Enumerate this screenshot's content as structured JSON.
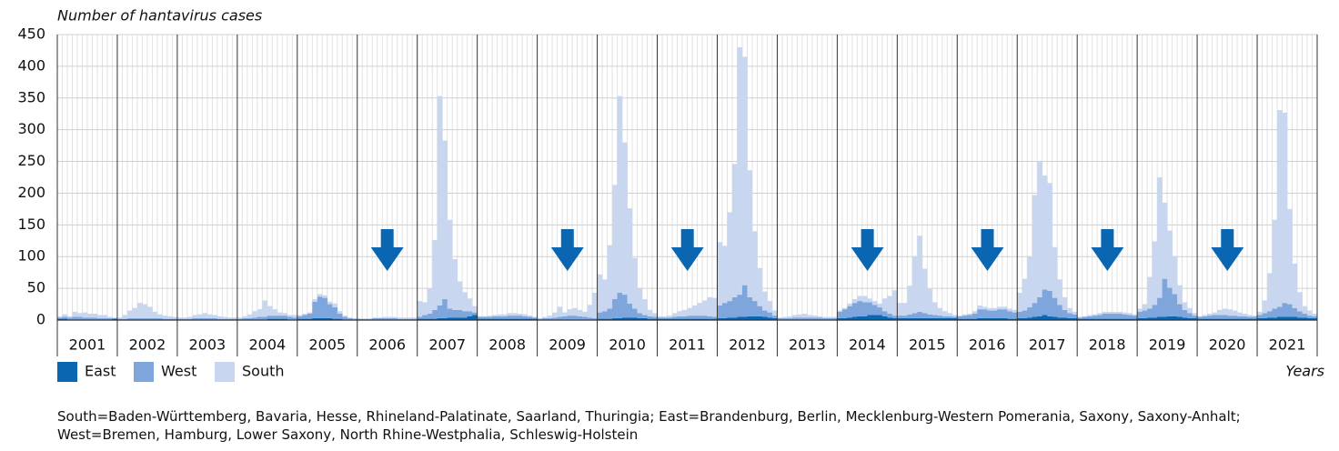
{
  "chart_data": {
    "type": "stacked-bar",
    "ylabel": "Number of hantavirus cases",
    "xlabel": "Years",
    "footnote": "South=Baden-Württemberg, Bavaria, Hesse, Rhineland-Palatinate, Saarland, Thuringia; East=Brandenburg, Berlin, Mecklenburg-Western Pomerania, Saxony, Saxony-Anhalt; West=Bremen, Hamburg, Lower Saxony, North Rhine-Westphalia, Schleswig-Holstein",
    "categories": [
      null,
      null,
      null,
      null,
      null,
      null,
      "2001",
      null,
      null,
      null,
      null,
      null,
      null,
      null,
      null,
      null,
      null,
      null,
      "2002",
      null,
      null,
      null,
      null,
      null,
      null,
      null,
      null,
      null,
      null,
      null,
      "2003",
      null,
      null,
      null,
      null,
      null,
      null,
      null,
      null,
      null,
      null,
      null,
      "2004",
      null,
      null,
      null,
      null,
      null,
      null,
      null,
      null,
      null,
      null,
      null,
      "2005",
      null,
      null,
      null,
      null,
      null,
      null,
      null,
      null,
      null,
      null,
      null,
      "2006",
      null,
      null,
      null,
      null,
      null,
      null,
      null,
      null,
      null,
      null,
      null,
      "2007",
      null,
      null,
      null,
      null,
      null,
      null,
      null,
      null,
      null,
      null,
      null,
      "2008",
      null,
      null,
      null,
      null,
      null,
      null,
      null,
      null,
      null,
      null,
      null,
      "2009",
      null,
      null,
      null,
      null,
      null,
      null,
      null,
      null,
      null,
      null,
      null,
      "2010",
      null,
      null,
      null,
      null,
      null,
      null,
      null,
      null,
      null,
      null,
      null,
      "2011",
      null,
      null,
      null,
      null,
      null,
      null,
      null,
      null,
      null,
      null,
      null,
      "2012",
      null,
      null,
      null,
      null,
      null,
      null,
      null,
      null,
      null,
      null,
      null,
      "2013",
      null,
      null,
      null,
      null,
      null,
      null,
      null,
      null,
      null,
      null,
      null,
      "2014",
      null,
      null,
      null,
      null,
      null,
      null,
      null,
      null,
      null,
      null,
      null,
      "2015",
      null,
      null,
      null,
      null,
      null,
      null,
      null,
      null,
      null,
      null,
      null,
      "2016",
      null,
      null,
      null,
      null,
      null,
      null,
      null,
      null,
      null,
      null,
      null,
      "2017",
      null,
      null,
      null,
      null,
      null,
      null,
      null,
      null,
      null,
      null,
      null,
      "2018",
      null,
      null,
      null,
      null,
      null,
      null,
      null,
      null,
      null,
      null,
      null,
      "2019",
      null,
      null,
      null,
      null,
      null,
      null,
      null,
      null,
      null,
      null,
      null,
      "2020",
      null,
      null,
      null,
      null,
      null,
      null,
      null,
      null,
      null,
      null,
      null,
      "2021",
      null,
      null,
      null,
      null,
      null
    ],
    "series": [
      {
        "name": "East",
        "color": "#0a66b0",
        "values": [
          2,
          2,
          1,
          1,
          1,
          1,
          1,
          1,
          1,
          1,
          1,
          2,
          1,
          1,
          1,
          1,
          1,
          1,
          1,
          1,
          1,
          1,
          1,
          1,
          1,
          1,
          1,
          1,
          1,
          1,
          1,
          1,
          1,
          1,
          1,
          1,
          1,
          1,
          1,
          1,
          1,
          1,
          2,
          2,
          2,
          2,
          1,
          1,
          2,
          2,
          2,
          3,
          3,
          3,
          3,
          2,
          2,
          1,
          1,
          1,
          1,
          1,
          1,
          1,
          1,
          1,
          1,
          1,
          1,
          1,
          1,
          1,
          2,
          2,
          2,
          2,
          3,
          3,
          4,
          4,
          4,
          4,
          6,
          8,
          2,
          2,
          2,
          2,
          2,
          2,
          2,
          2,
          2,
          2,
          2,
          2,
          1,
          1,
          1,
          1,
          1,
          1,
          1,
          1,
          1,
          1,
          1,
          1,
          2,
          2,
          2,
          3,
          3,
          4,
          4,
          4,
          3,
          3,
          2,
          2,
          2,
          2,
          2,
          2,
          2,
          2,
          2,
          2,
          2,
          2,
          2,
          2,
          3,
          3,
          4,
          4,
          5,
          5,
          6,
          6,
          6,
          5,
          4,
          3,
          1,
          1,
          1,
          1,
          1,
          1,
          1,
          1,
          1,
          1,
          1,
          1,
          3,
          3,
          4,
          5,
          6,
          6,
          8,
          8,
          8,
          6,
          4,
          3,
          3,
          3,
          3,
          3,
          3,
          3,
          3,
          3,
          3,
          3,
          3,
          3,
          2,
          2,
          2,
          2,
          3,
          3,
          3,
          3,
          3,
          3,
          2,
          2,
          3,
          3,
          4,
          5,
          6,
          8,
          6,
          5,
          4,
          4,
          3,
          3,
          2,
          2,
          2,
          2,
          2,
          2,
          2,
          2,
          2,
          2,
          2,
          2,
          3,
          3,
          4,
          4,
          5,
          5,
          6,
          6,
          5,
          4,
          3,
          3,
          2,
          2,
          2,
          2,
          2,
          2,
          2,
          2,
          2,
          2,
          2,
          2,
          3,
          3,
          4,
          4,
          5,
          5,
          5,
          5,
          4,
          4,
          3,
          3
        ]
      },
      {
        "name": "West",
        "color": "#7ea6dc",
        "values": [
          2,
          3,
          3,
          4,
          4,
          3,
          3,
          3,
          2,
          2,
          2,
          1,
          1,
          1,
          2,
          2,
          2,
          2,
          2,
          2,
          2,
          1,
          1,
          1,
          1,
          1,
          1,
          2,
          2,
          2,
          2,
          2,
          1,
          1,
          1,
          1,
          1,
          2,
          2,
          3,
          4,
          4,
          5,
          5,
          5,
          5,
          4,
          3,
          4,
          6,
          8,
          26,
          34,
          32,
          22,
          18,
          8,
          4,
          2,
          1,
          1,
          1,
          1,
          2,
          2,
          2,
          2,
          2,
          1,
          1,
          1,
          1,
          3,
          6,
          8,
          14,
          20,
          30,
          14,
          12,
          12,
          10,
          8,
          4,
          3,
          3,
          3,
          4,
          4,
          4,
          5,
          5,
          5,
          4,
          3,
          2,
          1,
          2,
          2,
          3,
          4,
          5,
          6,
          6,
          5,
          4,
          3,
          2,
          10,
          12,
          16,
          30,
          40,
          36,
          22,
          14,
          8,
          5,
          4,
          3,
          2,
          2,
          2,
          3,
          4,
          4,
          5,
          5,
          5,
          5,
          4,
          3,
          20,
          24,
          26,
          32,
          35,
          50,
          30,
          24,
          16,
          10,
          8,
          4,
          2,
          2,
          2,
          3,
          3,
          3,
          3,
          3,
          3,
          2,
          2,
          2,
          10,
          14,
          18,
          22,
          24,
          22,
          20,
          16,
          12,
          8,
          6,
          4,
          4,
          4,
          6,
          8,
          10,
          8,
          6,
          5,
          4,
          3,
          3,
          2,
          4,
          5,
          6,
          8,
          14,
          14,
          12,
          12,
          14,
          14,
          12,
          10,
          10,
          12,
          16,
          22,
          30,
          40,
          40,
          30,
          20,
          12,
          8,
          6,
          2,
          3,
          4,
          5,
          6,
          8,
          8,
          8,
          8,
          7,
          6,
          5,
          10,
          12,
          14,
          20,
          30,
          60,
          45,
          35,
          20,
          12,
          8,
          4,
          3,
          4,
          5,
          6,
          6,
          6,
          5,
          5,
          4,
          4,
          3,
          3,
          5,
          8,
          10,
          14,
          16,
          22,
          20,
          14,
          10,
          6,
          4,
          3
        ]
      },
      {
        "name": "South",
        "color": "#c8d7ef",
        "values": [
          2,
          4,
          2,
          8,
          6,
          8,
          6,
          6,
          5,
          5,
          2,
          1,
          2,
          6,
          12,
          16,
          24,
          22,
          18,
          10,
          6,
          5,
          4,
          3,
          2,
          2,
          3,
          5,
          6,
          8,
          6,
          5,
          4,
          3,
          2,
          2,
          2,
          3,
          6,
          10,
          12,
          26,
          15,
          10,
          5,
          4,
          3,
          4,
          2,
          2,
          2,
          4,
          4,
          4,
          4,
          6,
          4,
          2,
          1,
          1,
          0,
          0,
          0,
          1,
          1,
          2,
          2,
          2,
          2,
          2,
          2,
          2,
          25,
          20,
          40,
          110,
          330,
          250,
          140,
          80,
          45,
          30,
          20,
          10,
          1,
          1,
          2,
          2,
          3,
          3,
          4,
          4,
          3,
          3,
          2,
          1,
          1,
          2,
          4,
          8,
          16,
          6,
          10,
          12,
          10,
          8,
          20,
          40,
          60,
          50,
          100,
          180,
          310,
          240,
          150,
          80,
          40,
          25,
          10,
          6,
          2,
          2,
          3,
          6,
          8,
          10,
          12,
          16,
          20,
          24,
          30,
          30,
          100,
          90,
          140,
          210,
          390,
          360,
          200,
          110,
          60,
          30,
          18,
          8,
          1,
          2,
          3,
          4,
          5,
          6,
          4,
          3,
          2,
          2,
          2,
          2,
          2,
          2,
          4,
          6,
          8,
          10,
          6,
          6,
          6,
          20,
          28,
          40,
          20,
          20,
          45,
          90,
          120,
          70,
          40,
          20,
          12,
          8,
          5,
          3,
          1,
          2,
          2,
          4,
          6,
          4,
          4,
          4,
          4,
          4,
          4,
          4,
          30,
          50,
          80,
          170,
          215,
          180,
          170,
          80,
          40,
          20,
          8,
          4,
          1,
          1,
          2,
          2,
          3,
          3,
          3,
          3,
          3,
          3,
          3,
          2,
          5,
          10,
          50,
          100,
          190,
          120,
          90,
          60,
          30,
          12,
          8,
          4,
          1,
          2,
          3,
          4,
          8,
          10,
          10,
          8,
          6,
          4,
          3,
          2,
          5,
          20,
          60,
          140,
          310,
          300,
          150,
          70,
          30,
          12,
          8,
          4
        ]
      }
    ],
    "ylim": [
      0,
      450
    ],
    "yticks": [
      0,
      50,
      100,
      150,
      200,
      250,
      300,
      350,
      400,
      450
    ],
    "grid": true
  }
}
